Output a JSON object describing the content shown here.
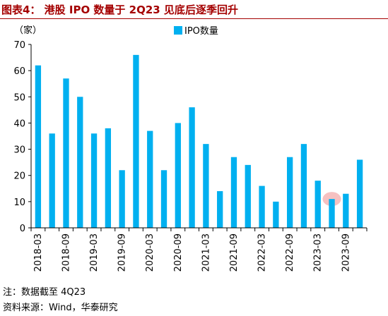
{
  "title": "图表4：  港股 IPO 数量于 2Q23 见底后逐季回升",
  "footer": {
    "note": "注：数据截至 4Q23",
    "source": "资料来源：Wind，华泰研究"
  },
  "colors": {
    "bar": "#00b0f0",
    "title": "#a40000",
    "highlight": "#f4b6b6"
  },
  "chart_data": {
    "type": "bar",
    "unit_label": "（家）",
    "legend": "IPO数量",
    "legend_position": "top-center",
    "ylim": [
      0,
      70
    ],
    "yticks": [
      0,
      10,
      20,
      30,
      40,
      50,
      60,
      70
    ],
    "grid": false,
    "periods": [
      "2018-03",
      "2018-06",
      "2018-09",
      "2018-12",
      "2019-03",
      "2019-06",
      "2019-09",
      "2019-12",
      "2020-03",
      "2020-06",
      "2020-09",
      "2020-12",
      "2021-03",
      "2021-06",
      "2021-09",
      "2021-12",
      "2022-03",
      "2022-06",
      "2022-09",
      "2022-12",
      "2023-03",
      "2023-06",
      "2023-09",
      "2023-12"
    ],
    "values": [
      62,
      36,
      57,
      50,
      36,
      38,
      22,
      66,
      37,
      22,
      40,
      46,
      32,
      14,
      27,
      24,
      16,
      10,
      27,
      32,
      18,
      11,
      13,
      26
    ],
    "x_tick_labels": [
      "2018-03",
      "2018-09",
      "2019-03",
      "2019-09",
      "2020-03",
      "2020-09",
      "2021-03",
      "2021-09",
      "2022-03",
      "2022-09",
      "2023-03",
      "2023-09"
    ],
    "highlight_period": "2023-06"
  }
}
